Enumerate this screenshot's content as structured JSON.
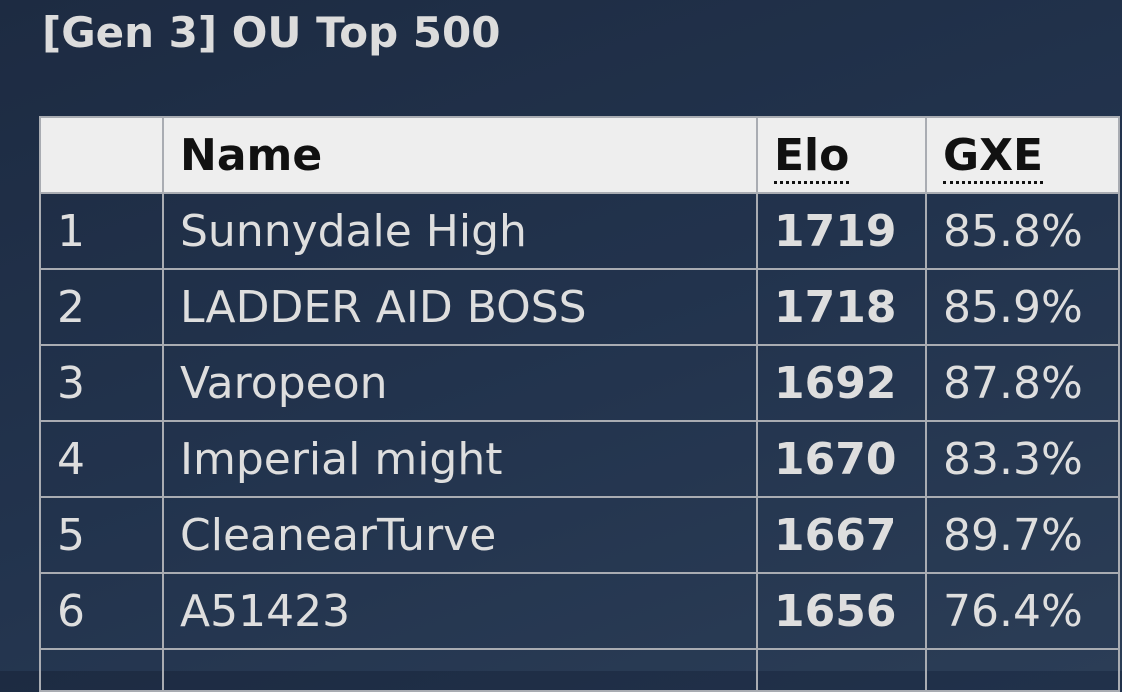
{
  "header": {
    "title": "[Gen 3] OU Top 500"
  },
  "table": {
    "columns": [
      "",
      "Name",
      "Elo",
      "GXE"
    ],
    "rows": [
      [
        "1",
        "Sunnydale High",
        "1719",
        "85.8%"
      ],
      [
        "2",
        "LADDER AID BOSS",
        "1718",
        "85.9%"
      ],
      [
        "3",
        "Varopeon",
        "1692",
        "87.8%"
      ],
      [
        "4",
        "Imperial might",
        "1670",
        "83.3%"
      ],
      [
        "5",
        "CleanearTurve",
        "1667",
        "89.7%"
      ],
      [
        "6",
        "A51423",
        "1656",
        "76.4%"
      ]
    ]
  }
}
